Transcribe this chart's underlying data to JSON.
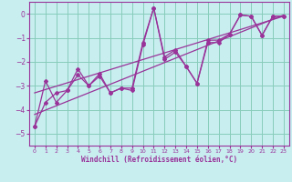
{
  "xlabel": "Windchill (Refroidissement éolien,°C)",
  "background_color": "#c8eef0",
  "grid_color": "#88ccbb",
  "line_color": "#993399",
  "spine_color": "#993399",
  "xlim": [
    -0.5,
    23.5
  ],
  "ylim": [
    -5.5,
    0.5
  ],
  "yticks": [
    0,
    -1,
    -2,
    -3,
    -4,
    -5
  ],
  "xticks": [
    0,
    1,
    2,
    3,
    4,
    5,
    6,
    7,
    8,
    9,
    10,
    11,
    12,
    13,
    14,
    15,
    16,
    17,
    18,
    19,
    20,
    21,
    22,
    23
  ],
  "series1": [
    [
      0,
      -4.7
    ],
    [
      1,
      -2.8
    ],
    [
      2,
      -3.7
    ],
    [
      3,
      -3.2
    ],
    [
      4,
      -2.3
    ],
    [
      5,
      -3.0
    ],
    [
      6,
      -2.6
    ],
    [
      7,
      -3.3
    ],
    [
      8,
      -3.1
    ],
    [
      9,
      -3.2
    ],
    [
      10,
      -1.3
    ],
    [
      11,
      0.25
    ],
    [
      12,
      -1.9
    ],
    [
      13,
      -1.6
    ],
    [
      14,
      -2.2
    ],
    [
      15,
      -2.9
    ],
    [
      16,
      -1.2
    ],
    [
      17,
      -1.2
    ],
    [
      18,
      -0.85
    ],
    [
      19,
      -0.05
    ],
    [
      20,
      -0.1
    ],
    [
      21,
      -0.9
    ],
    [
      22,
      -0.1
    ],
    [
      23,
      -0.1
    ]
  ],
  "series2": [
    [
      0,
      -4.7
    ],
    [
      1,
      -3.7
    ],
    [
      2,
      -3.3
    ],
    [
      3,
      -3.2
    ],
    [
      4,
      -2.55
    ],
    [
      5,
      -3.0
    ],
    [
      6,
      -2.5
    ],
    [
      7,
      -3.3
    ],
    [
      8,
      -3.1
    ],
    [
      9,
      -3.1
    ],
    [
      10,
      -1.2
    ],
    [
      11,
      0.25
    ],
    [
      12,
      -1.8
    ],
    [
      13,
      -1.5
    ],
    [
      14,
      -2.2
    ],
    [
      15,
      -2.9
    ],
    [
      16,
      -1.1
    ],
    [
      17,
      -1.1
    ],
    [
      18,
      -0.85
    ],
    [
      19,
      -0.05
    ],
    [
      20,
      -0.1
    ],
    [
      21,
      -0.9
    ],
    [
      22,
      -0.1
    ],
    [
      23,
      -0.1
    ]
  ],
  "trend1_x": [
    0,
    23
  ],
  "trend1_y": [
    -4.2,
    -0.05
  ],
  "trend2_x": [
    0,
    23
  ],
  "trend2_y": [
    -3.3,
    -0.1
  ]
}
